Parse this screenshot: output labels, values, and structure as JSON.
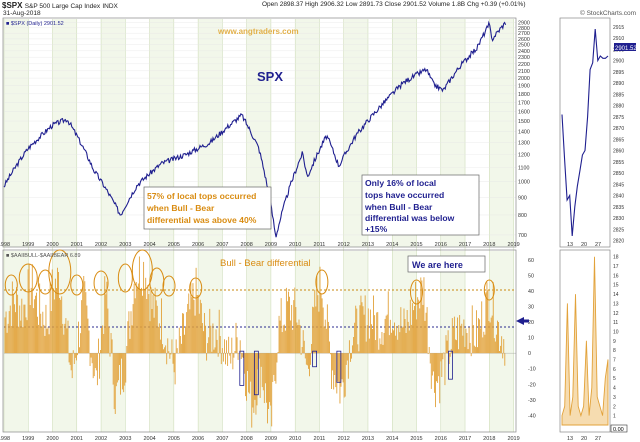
{
  "header": {
    "symbol": "$SPX",
    "name": "S&P 500 Large Cap Index",
    "exchange": "INDX",
    "date": "31-Aug-2018",
    "open": "Open 2898.37",
    "high": "High 2906.32",
    "low": "Low 2891.73",
    "close": "Close 2901.52",
    "volume": "Volume 1.8B",
    "chg": "Chg +0.39 (+0.01%)",
    "source": "© StockCharts.com",
    "legend_top": "■ $SPX (Daily) 2901.52",
    "legend_bottom": "■ $AAIIBULL-$AAIIBEAR 6.89",
    "last_value_tag": "2901.52"
  },
  "annotations": {
    "watermark": "www.angtraders.com",
    "spx_label": "SPX",
    "diff_label": "Bull - Bear differential",
    "note_57": [
      "57% of local tops occurred",
      "when Bull - Bear",
      "differential was above 40%"
    ],
    "note_16": [
      "Only 16% of local",
      "tops have occurred",
      "when Bull - Bear",
      "differential was below",
      "+15%"
    ],
    "we_are_here": "We are here"
  },
  "colors": {
    "price_line": "#1f1f8f",
    "histogram": "#e2a23a",
    "annotation_text": "#d98c12",
    "circle": "#d98c12",
    "grid_band": "#e8f0d8",
    "dotted_40": "#c98a10",
    "dotted_15": "#2b2b8f"
  },
  "chart_data": [
    {
      "type": "line",
      "panel": "main-price",
      "title": "SPX",
      "series": [
        {
          "name": "$SPX (Daily)",
          "x": [
            1998.0,
            1999.0,
            2000.0,
            2000.6,
            2001.7,
            2002.8,
            2003.5,
            2004.5,
            2005.5,
            2006.5,
            2007.8,
            2008.5,
            2009.2,
            2010.3,
            2010.5,
            2011.3,
            2011.8,
            2012.5,
            2013.5,
            2014.5,
            2015.4,
            2015.7,
            2016.1,
            2016.8,
            2017.5,
            2018.0,
            2018.1,
            2018.67
          ],
          "values": [
            970,
            1250,
            1460,
            1520,
            1080,
            800,
            980,
            1130,
            1200,
            1300,
            1560,
            1250,
            690,
            1210,
            1030,
            1360,
            1110,
            1360,
            1650,
            1950,
            2120,
            1920,
            1840,
            2170,
            2450,
            2870,
            2590,
            2901
          ]
        }
      ],
      "xlabel": "",
      "ylabel": "",
      "x_ticks": [
        "1998",
        "1999",
        "2000",
        "2001",
        "2002",
        "2003",
        "2004",
        "2005",
        "2006",
        "2007",
        "2008",
        "2009",
        "2010",
        "2011",
        "2012",
        "2013",
        "2014",
        "2015",
        "2016",
        "2017",
        "2018",
        "2019"
      ],
      "y_ticks": [
        700,
        800,
        900,
        1000,
        1100,
        1200,
        1300,
        1400,
        1500,
        1600,
        1700,
        1800,
        1900,
        2000,
        2100,
        2200,
        2300,
        2400,
        2500,
        2600,
        2700,
        2800,
        2900
      ],
      "ylim": [
        650,
        2950
      ],
      "scale": "log"
    },
    {
      "type": "bar",
      "panel": "bull-bear-differential",
      "title": "Bull - Bear differential",
      "series": [
        {
          "name": "$AAIIBULL-$AAIIBEAR",
          "x": [
            1998.0,
            1998.4,
            1998.8,
            1999.1,
            1999.4,
            1999.8,
            2000.0,
            2000.3,
            2000.8,
            2001.3,
            2001.8,
            2002.2,
            2002.6,
            2003.0,
            2003.4,
            2003.8,
            2004.1,
            2004.5,
            2005.0,
            2005.5,
            2005.9,
            2006.3,
            2006.8,
            2007.3,
            2007.7,
            2008.2,
            2008.6,
            2009.0,
            2009.3,
            2009.7,
            2010.1,
            2010.5,
            2010.9,
            2011.1,
            2011.5,
            2011.9,
            2012.3,
            2012.7,
            2013.0,
            2013.5,
            2014.0,
            2014.5,
            2015.0,
            2015.3,
            2015.7,
            2016.0,
            2016.5,
            2017.0,
            2017.5,
            2018.0,
            2018.4,
            2018.67
          ],
          "values": [
            22,
            35,
            28,
            45,
            30,
            20,
            42,
            48,
            -15,
            35,
            -20,
            40,
            -30,
            -5,
            50,
            55,
            30,
            22,
            -10,
            18,
            40,
            10,
            15,
            -5,
            12,
            -35,
            -10,
            -50,
            15,
            30,
            25,
            -12,
            38,
            45,
            -8,
            -25,
            10,
            20,
            25,
            18,
            28,
            15,
            35,
            42,
            -20,
            -15,
            10,
            18,
            12,
            38,
            15,
            7
          ]
        }
      ],
      "xlabel": "",
      "ylabel": "",
      "y_ticks": [
        -40,
        -30,
        -20,
        -10,
        0,
        10,
        20,
        30,
        40,
        50,
        60
      ],
      "ylim": [
        -50,
        65
      ],
      "reference_lines": [
        {
          "label": "40%",
          "value": 40
        },
        {
          "label": "+15%",
          "value": 15
        }
      ]
    },
    {
      "type": "line",
      "panel": "right-zoom-price",
      "x_ticks": [
        "13",
        "20",
        "27"
      ],
      "y_ticks": [
        2820,
        2825,
        2830,
        2835,
        2840,
        2845,
        2850,
        2855,
        2860,
        2865,
        2870,
        2875,
        2880,
        2885,
        2890,
        2895,
        2900,
        2905,
        2910,
        2915
      ],
      "series": [
        {
          "name": "$SPX",
          "x": [
            0,
            1,
            2,
            3,
            4,
            5,
            6,
            7,
            8,
            9,
            10,
            11,
            12,
            13,
            14,
            15,
            16,
            17,
            18
          ],
          "values": [
            2876,
            2856,
            2838,
            2840,
            2822,
            2835,
            2844,
            2851,
            2858,
            2860,
            2875,
            2896,
            2899,
            2914,
            2900,
            2902,
            2901,
            2901,
            2902
          ]
        }
      ],
      "ylim": [
        2818,
        2918
      ]
    },
    {
      "type": "bar",
      "panel": "right-zoom-differential",
      "y_ticks": [
        1,
        2,
        3,
        4,
        5,
        6,
        7,
        8,
        9,
        10,
        11,
        12,
        13,
        14,
        15,
        16,
        17,
        18
      ],
      "series": [
        {
          "name": "$AAIIBULL-$AAIIBEAR",
          "values": [
            1,
            2,
            13,
            1,
            3,
            14,
            2,
            1,
            2,
            9,
            1,
            4,
            18,
            3,
            2,
            1,
            5,
            7
          ]
        }
      ],
      "ylim": [
        0,
        18.5
      ],
      "x_ticks": [
        "13",
        "20",
        "27"
      ],
      "readout": "0.00"
    }
  ]
}
